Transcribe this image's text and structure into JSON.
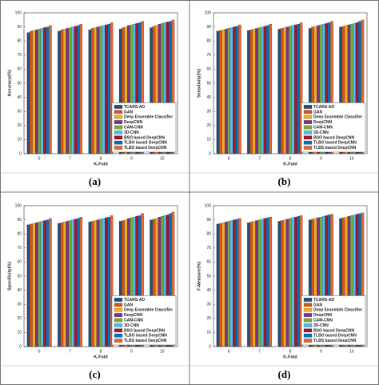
{
  "chart_data": [
    {
      "type": "bar",
      "panel_label": "(a)",
      "x_label": "K-Fold",
      "y_label": "Accuracy(%)",
      "categories": [
        "6",
        "7",
        "8",
        "9",
        "10"
      ],
      "ylim": [
        0,
        100
      ],
      "yticks": [
        0,
        10,
        20,
        30,
        40,
        50,
        60,
        70,
        80,
        90,
        100
      ],
      "grid": false,
      "legend": "lower right",
      "series": [
        {
          "name": "TCARS-AD",
          "color": "#1f4e79",
          "values": [
            86,
            87,
            88,
            88.5,
            89.5
          ]
        },
        {
          "name": "GAN",
          "color": "#D95319",
          "values": [
            87,
            88,
            89,
            89.5,
            90.5
          ]
        },
        {
          "name": "Deep Ensemble Classifier",
          "color": "#EDB120",
          "values": [
            87.5,
            88.5,
            89.5,
            90,
            91
          ]
        },
        {
          "name": "DeepCNN",
          "color": "#7E2F8E",
          "values": [
            88,
            89,
            90,
            91,
            92
          ]
        },
        {
          "name": "CAM-CNN",
          "color": "#77AC30",
          "values": [
            88.5,
            89.5,
            90.5,
            91.5,
            92.5
          ]
        },
        {
          "name": "3D-CNN",
          "color": "#4DBEEE",
          "values": [
            89,
            90,
            91,
            92,
            93
          ]
        },
        {
          "name": "BSO based DeepCNN",
          "color": "#A2142F",
          "values": [
            89.5,
            90.5,
            91.5,
            92.5,
            93.5
          ]
        },
        {
          "name": "TLBO based DeepCNN",
          "color": "#0072BD",
          "values": [
            90,
            91,
            92,
            93,
            94
          ]
        },
        {
          "name": "TLBS based DeepCNN",
          "color": "#E2662D",
          "values": [
            91,
            92,
            93,
            94,
            95
          ]
        }
      ]
    },
    {
      "type": "bar",
      "panel_label": "(b)",
      "x_label": "K-Fold",
      "y_label": "Sensitivity(%)",
      "categories": [
        "6",
        "7",
        "8",
        "9",
        "10"
      ],
      "ylim": [
        0,
        100
      ],
      "yticks": [
        0,
        10,
        20,
        30,
        40,
        50,
        60,
        70,
        80,
        90,
        100
      ],
      "grid": false,
      "legend": "lower right",
      "series": [
        {
          "name": "TCARS-AD",
          "color": "#1f4e79",
          "values": [
            87,
            87.5,
            88.5,
            89,
            90
          ]
        },
        {
          "name": "GAN",
          "color": "#D95319",
          "values": [
            87.5,
            88,
            89,
            90,
            90.5
          ]
        },
        {
          "name": "Deep Ensemble Classifier",
          "color": "#EDB120",
          "values": [
            88,
            88.5,
            89.5,
            90.5,
            91
          ]
        },
        {
          "name": "DeepCNN",
          "color": "#7E2F8E",
          "values": [
            88.5,
            89,
            90,
            91,
            91.5
          ]
        },
        {
          "name": "CAM-CNN",
          "color": "#77AC30",
          "values": [
            89,
            89.5,
            90.5,
            91.5,
            92
          ]
        },
        {
          "name": "3D-CNN",
          "color": "#4DBEEE",
          "values": [
            89.5,
            90,
            91,
            92,
            92.5
          ]
        },
        {
          "name": "BSO based DeepCNN",
          "color": "#A2142F",
          "values": [
            90,
            90.5,
            91.5,
            92.5,
            93
          ]
        },
        {
          "name": "TLBO based DeepCNN",
          "color": "#0072BD",
          "values": [
            90.5,
            91,
            92,
            93,
            94
          ]
        },
        {
          "name": "TLBS based DeepCNN",
          "color": "#E2662D",
          "values": [
            91.5,
            92,
            93,
            94,
            95
          ]
        }
      ]
    },
    {
      "type": "bar",
      "panel_label": "(c)",
      "x_label": "K-Fold",
      "y_label": "Specificity(%)",
      "categories": [
        "6",
        "7",
        "8",
        "9",
        "10"
      ],
      "ylim": [
        0,
        100
      ],
      "yticks": [
        0,
        10,
        20,
        30,
        40,
        50,
        60,
        70,
        80,
        90,
        100
      ],
      "grid": false,
      "legend": "lower right",
      "series": [
        {
          "name": "TCARS-AD",
          "color": "#1f4e79",
          "values": [
            86.5,
            87.5,
            88.5,
            89,
            90
          ]
        },
        {
          "name": "GAN",
          "color": "#D95319",
          "values": [
            87,
            88,
            89,
            89.5,
            90.5
          ]
        },
        {
          "name": "Deep Ensemble Classifier",
          "color": "#EDB120",
          "values": [
            87.5,
            88.5,
            89.5,
            90,
            91
          ]
        },
        {
          "name": "DeepCNN",
          "color": "#7E2F8E",
          "values": [
            88,
            89,
            90,
            91,
            92
          ]
        },
        {
          "name": "CAM-CNN",
          "color": "#77AC30",
          "values": [
            88.5,
            89.5,
            90.5,
            91.5,
            92.5
          ]
        },
        {
          "name": "3D-CNN",
          "color": "#4DBEEE",
          "values": [
            89,
            90,
            91,
            92,
            93
          ]
        },
        {
          "name": "BSO based DeepCNN",
          "color": "#A2142F",
          "values": [
            89.5,
            90.5,
            91.5,
            92.5,
            93.5
          ]
        },
        {
          "name": "TLBO based DeepCNN",
          "color": "#0072BD",
          "values": [
            90,
            91,
            92,
            93,
            94.5
          ]
        },
        {
          "name": "TLBS based DeepCNN",
          "color": "#E2662D",
          "values": [
            91,
            92,
            93,
            94.5,
            95.5
          ]
        }
      ]
    },
    {
      "type": "bar",
      "panel_label": "(d)",
      "x_label": "K-Fold",
      "y_label": "F-Measure(%)",
      "categories": [
        "6",
        "7",
        "8",
        "9",
        "10"
      ],
      "ylim": [
        0,
        100
      ],
      "yticks": [
        0,
        10,
        20,
        30,
        40,
        50,
        60,
        70,
        80,
        90,
        100
      ],
      "grid": false,
      "legend": "lower right",
      "series": [
        {
          "name": "TCARS-AD",
          "color": "#1f4e79",
          "values": [
            87,
            88,
            89,
            90,
            91
          ]
        },
        {
          "name": "GAN",
          "color": "#D95319",
          "values": [
            87.5,
            88.5,
            89.5,
            90.5,
            91.5
          ]
        },
        {
          "name": "Deep Ensemble Classifier",
          "color": "#EDB120",
          "values": [
            88,
            89,
            90,
            91,
            92
          ]
        },
        {
          "name": "DeepCNN",
          "color": "#7E2F8E",
          "values": [
            88.5,
            89.5,
            90.5,
            91.5,
            92.5
          ]
        },
        {
          "name": "CAM-CNN",
          "color": "#77AC30",
          "values": [
            89,
            90,
            91,
            92,
            93
          ]
        },
        {
          "name": "3D-CNN",
          "color": "#4DBEEE",
          "values": [
            89.5,
            90.5,
            91.5,
            92.5,
            93.5
          ]
        },
        {
          "name": "BSO based DeepCNN",
          "color": "#A2142F",
          "values": [
            90,
            91,
            92,
            93,
            94
          ]
        },
        {
          "name": "TLBO based DeepCNN",
          "color": "#0072BD",
          "values": [
            90.5,
            91.5,
            92.5,
            93.5,
            94.5
          ]
        },
        {
          "name": "TLBS based DeepCNN",
          "color": "#E2662D",
          "values": [
            91,
            92,
            93,
            94,
            95
          ]
        }
      ]
    }
  ]
}
